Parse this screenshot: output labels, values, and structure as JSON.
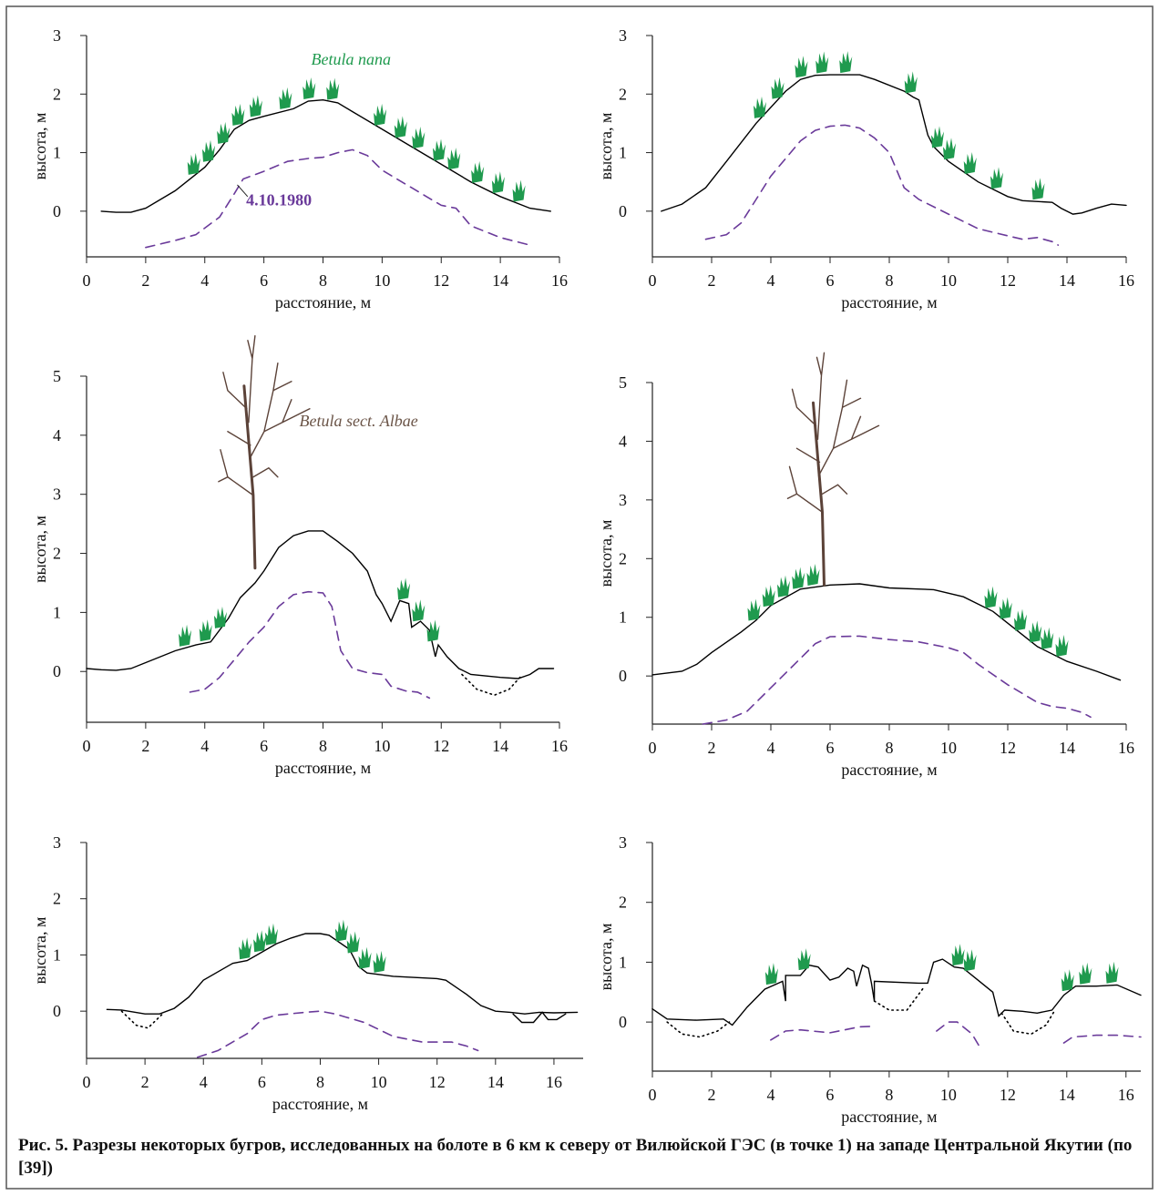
{
  "caption": "Рис. 5. Разрезы некоторых бугров, исследованных на болоте в 6 км к северу от Вилюйской ГЭС (в точке 1) на западе Центральной Якутии (по [39])",
  "chart_data": [
    {
      "type": "line",
      "xlabel": "расстояние, м",
      "ylabel": "высота, м",
      "xlim": [
        0,
        16
      ],
      "ylim": [
        -0.78,
        3
      ],
      "xticks": [
        0,
        2,
        4,
        6,
        8,
        10,
        12,
        14,
        16
      ],
      "yticks": [
        0,
        1,
        2,
        3
      ],
      "annotations": [
        {
          "text": "Betula nana",
          "color": "#1f9a4e",
          "style": "italic"
        },
        {
          "text": "4.10.1980",
          "color": "#6a3a9a",
          "style": "bold"
        }
      ],
      "series": [
        {
          "color": "#000000",
          "style": "solid",
          "x": [
            0.5,
            1,
            1.5,
            2,
            3,
            4,
            4.5,
            5,
            5.5,
            6,
            7,
            7.5,
            8,
            8.5,
            9,
            10,
            11,
            12,
            13,
            14,
            15,
            15.7
          ],
          "values": [
            0,
            -0.02,
            -0.02,
            0.05,
            0.35,
            0.75,
            1.05,
            1.4,
            1.55,
            1.62,
            1.75,
            1.88,
            1.9,
            1.85,
            1.7,
            1.4,
            1.1,
            0.8,
            0.5,
            0.25,
            0.05,
            0
          ]
        },
        {
          "color": "#6a3a9a",
          "style": "dashed",
          "x": [
            2,
            3,
            3.7,
            4.5,
            5,
            5.3,
            6,
            6.8,
            7.5,
            8,
            8.5,
            9,
            9.5,
            10,
            11,
            11.5,
            12,
            12.5,
            13,
            14,
            15
          ],
          "values": [
            -0.62,
            -0.5,
            -0.4,
            -0.1,
            0.3,
            0.55,
            0.68,
            0.85,
            0.9,
            0.92,
            1.0,
            1.05,
            0.95,
            0.7,
            0.4,
            0.25,
            0.1,
            0.05,
            -0.25,
            -0.45,
            -0.58
          ]
        }
      ]
    },
    {
      "type": "line",
      "xlabel": "расстояние, м",
      "ylabel": "высота, м",
      "xlim": [
        0,
        16
      ],
      "ylim": [
        -0.78,
        3
      ],
      "xticks": [
        0,
        2,
        4,
        6,
        8,
        10,
        12,
        14,
        16
      ],
      "yticks": [
        0,
        1,
        2,
        3
      ],
      "series": [
        {
          "color": "#000000",
          "style": "solid",
          "x": [
            0.3,
            1,
            1.8,
            2.5,
            3.5,
            4.5,
            5,
            5.5,
            6,
            7,
            7.5,
            8.5,
            8.8,
            9,
            9.3,
            9.5,
            10,
            11,
            12,
            12.5,
            13.5,
            13.8,
            14.2,
            14.5,
            15,
            15.5,
            16
          ],
          "values": [
            0,
            0.12,
            0.4,
            0.85,
            1.5,
            2.05,
            2.25,
            2.32,
            2.33,
            2.33,
            2.25,
            2.05,
            1.95,
            1.9,
            1.3,
            1.1,
            0.85,
            0.5,
            0.25,
            0.18,
            0.15,
            0.05,
            -0.05,
            -0.03,
            0.05,
            0.12,
            0.1
          ]
        },
        {
          "color": "#6a3a9a",
          "style": "dashed",
          "x": [
            1.8,
            2.5,
            3,
            3.5,
            4,
            4.5,
            5,
            5.5,
            6,
            6.5,
            7,
            7.5,
            8,
            8.5,
            9,
            10,
            11,
            12,
            12.5,
            13,
            13.5,
            13.7
          ],
          "values": [
            -0.48,
            -0.4,
            -0.2,
            0.2,
            0.6,
            0.9,
            1.2,
            1.38,
            1.45,
            1.47,
            1.42,
            1.25,
            1.0,
            0.4,
            0.2,
            -0.05,
            -0.3,
            -0.42,
            -0.48,
            -0.45,
            -0.52,
            -0.58
          ]
        }
      ]
    },
    {
      "type": "line",
      "xlabel": "расстояние, м",
      "ylabel": "высота, м",
      "xlim": [
        0,
        16
      ],
      "ylim": [
        -0.86,
        5
      ],
      "xticks": [
        0,
        2,
        4,
        6,
        8,
        10,
        12,
        14,
        16
      ],
      "yticks": [
        0,
        1,
        2,
        3,
        4,
        5
      ],
      "annotations": [
        {
          "text": "Betula sect. Albae",
          "color": "#6b5548",
          "style": "italic"
        }
      ],
      "series": [
        {
          "color": "#000000",
          "style": "solid",
          "x": [
            0,
            0.5,
            1,
            1.5,
            2,
            3,
            3.7,
            4.2,
            4.8,
            5.2,
            5.7,
            6,
            6.5,
            7,
            7.5,
            8,
            8.5,
            9,
            9.5,
            9.8,
            10,
            10.3,
            10.6,
            10.9,
            11,
            11.3,
            11.6,
            11.8,
            11.9,
            12.2,
            12.6,
            13,
            14,
            14.6,
            15,
            15.3,
            15.8
          ],
          "values": [
            0.05,
            0.03,
            0.02,
            0.05,
            0.15,
            0.35,
            0.45,
            0.5,
            0.9,
            1.25,
            1.5,
            1.7,
            2.1,
            2.3,
            2.38,
            2.38,
            2.2,
            2.0,
            1.7,
            1.3,
            1.15,
            0.85,
            1.2,
            1.15,
            0.75,
            0.85,
            0.7,
            0.25,
            0.45,
            0.25,
            0.05,
            -0.05,
            -0.1,
            -0.12,
            -0.05,
            0.05,
            0.05
          ]
        },
        {
          "color": "#6a3a9a",
          "style": "dashed",
          "x": [
            3.5,
            4,
            4.5,
            5,
            5.5,
            6,
            6.5,
            7,
            7.5,
            8,
            8.3,
            8.6,
            9,
            9.5,
            10,
            10.3,
            10.8,
            11.2,
            11.6
          ],
          "values": [
            -0.35,
            -0.3,
            -0.1,
            0.2,
            0.5,
            0.75,
            1.1,
            1.3,
            1.35,
            1.33,
            1.1,
            0.35,
            0.05,
            -0.02,
            -0.05,
            -0.25,
            -0.33,
            -0.35,
            -0.45
          ]
        },
        {
          "color": "#000000",
          "style": "dotted",
          "x": [
            12.7,
            13.2,
            13.8,
            14.3,
            14.7
          ],
          "values": [
            -0.05,
            -0.3,
            -0.4,
            -0.3,
            -0.08
          ]
        }
      ]
    },
    {
      "type": "line",
      "xlabel": "расстояние, м",
      "ylabel": "высота, м",
      "xlim": [
        0,
        16
      ],
      "ylim": [
        -0.82,
        5
      ],
      "xticks": [
        0,
        2,
        4,
        6,
        8,
        10,
        12,
        14,
        16
      ],
      "yticks": [
        0,
        1,
        2,
        3,
        4,
        5
      ],
      "series": [
        {
          "color": "#000000",
          "style": "solid",
          "x": [
            0,
            1,
            1.5,
            2,
            3,
            3.5,
            4,
            5,
            6,
            7,
            8,
            9.5,
            10.5,
            11.5,
            12,
            12.5,
            13,
            14,
            15,
            15.8
          ],
          "values": [
            0.02,
            0.08,
            0.2,
            0.4,
            0.75,
            0.95,
            1.2,
            1.48,
            1.55,
            1.57,
            1.5,
            1.47,
            1.35,
            1.1,
            0.9,
            0.7,
            0.5,
            0.25,
            0.08,
            -0.07
          ]
        },
        {
          "color": "#6a3a9a",
          "style": "dashed",
          "x": [
            1.7,
            2.5,
            3.2,
            4,
            4.8,
            5.5,
            6,
            7,
            8,
            9,
            10,
            10.5,
            11,
            12,
            12.5,
            13,
            13.5,
            14,
            14.5,
            14.8
          ],
          "values": [
            -0.82,
            -0.75,
            -0.6,
            -0.2,
            0.2,
            0.55,
            0.67,
            0.68,
            0.62,
            0.58,
            0.48,
            0.4,
            0.2,
            -0.15,
            -0.3,
            -0.45,
            -0.52,
            -0.55,
            -0.62,
            -0.7
          ]
        }
      ]
    },
    {
      "type": "line",
      "xlabel": "расстояние, м",
      "ylabel": "высота, м",
      "xlim": [
        0,
        17
      ],
      "ylim": [
        -0.84,
        3
      ],
      "xticks": [
        0,
        2,
        4,
        6,
        8,
        10,
        12,
        14,
        16
      ],
      "yticks": [
        0,
        1,
        2,
        3
      ],
      "series": [
        {
          "color": "#000000",
          "style": "solid",
          "x": [
            0.7,
            1.2,
            2,
            2.5,
            3,
            3.5,
            4,
            5,
            5.5,
            6,
            6.5,
            7,
            7.5,
            8,
            8.3,
            9,
            9.3,
            9.6,
            10.5,
            12,
            12.3,
            13,
            13.5,
            14,
            14.5,
            15,
            15.5,
            16,
            16.8
          ],
          "values": [
            0.03,
            0.02,
            -0.05,
            -0.05,
            0.05,
            0.25,
            0.55,
            0.85,
            0.9,
            1.05,
            1.2,
            1.3,
            1.38,
            1.38,
            1.35,
            1.1,
            0.8,
            0.68,
            0.62,
            0.58,
            0.55,
            0.3,
            0.1,
            0,
            -0.02,
            -0.05,
            -0.02,
            -0.03,
            -0.02
          ]
        },
        {
          "color": "#000000",
          "style": "solid",
          "x": [
            14.6,
            14.9,
            15.3,
            15.6,
            15.8,
            16.1,
            16.4
          ],
          "values": [
            -0.05,
            -0.2,
            -0.2,
            -0.02,
            -0.15,
            -0.15,
            -0.05
          ]
        },
        {
          "color": "#000000",
          "style": "dotted",
          "x": [
            1.2,
            1.7,
            2.1,
            2.6
          ],
          "values": [
            0,
            -0.25,
            -0.3,
            -0.05
          ]
        },
        {
          "color": "#6a3a9a",
          "style": "dashed",
          "x": [
            3.8,
            4.5,
            5.5,
            6,
            6.5,
            7.5,
            8,
            8.5,
            9.5,
            10.5,
            11.5,
            12.5,
            13,
            13.4
          ],
          "values": [
            -0.82,
            -0.7,
            -0.4,
            -0.15,
            -0.07,
            -0.02,
            0,
            -0.05,
            -0.2,
            -0.45,
            -0.55,
            -0.55,
            -0.62,
            -0.7
          ]
        }
      ]
    },
    {
      "type": "line",
      "xlabel": "расстояние, м",
      "ylabel": "высота, м",
      "xlim": [
        0,
        16.5
      ],
      "ylim": [
        -0.82,
        3
      ],
      "xticks": [
        0,
        2,
        4,
        6,
        8,
        10,
        12,
        14,
        16
      ],
      "yticks": [
        0,
        1,
        2,
        3
      ],
      "series": [
        {
          "color": "#000000",
          "style": "solid",
          "x": [
            0,
            0.5,
            1.5,
            2.4,
            2.7,
            3.2,
            3.8,
            4.4,
            4.5,
            4.5,
            5,
            5.3,
            5.6,
            6,
            6.3,
            6.6,
            6.8,
            6.9,
            7.1,
            7.3,
            7.4,
            7.5,
            7.5,
            9,
            9.3,
            9.5,
            9.8,
            10.2,
            10.5,
            11,
            11.5,
            11.7,
            11.9,
            12.5,
            13,
            13.5,
            13.9,
            14.3,
            15,
            15.7,
            16.5
          ],
          "values": [
            0.22,
            0.05,
            0.03,
            0.05,
            -0.05,
            0.25,
            0.55,
            0.68,
            0.35,
            0.78,
            0.78,
            0.95,
            0.92,
            0.7,
            0.75,
            0.9,
            0.85,
            0.6,
            0.95,
            0.9,
            0.65,
            0.35,
            0.68,
            0.65,
            0.65,
            1.0,
            1.05,
            0.92,
            0.9,
            0.7,
            0.5,
            0.1,
            0.2,
            0.18,
            0.15,
            0.2,
            0.45,
            0.6,
            0.6,
            0.62,
            0.45
          ]
        },
        {
          "color": "#000000",
          "style": "dotted",
          "x": [
            0.5,
            1,
            1.6,
            2.2,
            2.6,
            null,
            7.5,
            8,
            8.6,
            9.2,
            null,
            11.8,
            12.2,
            12.8,
            13.3,
            13.6
          ],
          "values": [
            0,
            -0.2,
            -0.25,
            -0.15,
            0,
            null,
            0.35,
            0.2,
            0.2,
            0.6,
            null,
            0.15,
            -0.15,
            -0.2,
            -0.05,
            0.2
          ]
        },
        {
          "color": "#6a3a9a",
          "style": "dashed",
          "x": [
            4,
            4.5,
            5,
            6,
            7,
            7.5,
            null,
            9.6,
            10,
            10.3,
            10.8,
            11.1,
            null,
            13.9,
            14.2,
            15,
            15.7,
            16.5
          ],
          "values": [
            -0.3,
            -0.15,
            -0.13,
            -0.18,
            -0.08,
            -0.07,
            null,
            -0.15,
            0,
            0,
            -0.2,
            -0.45,
            null,
            -0.35,
            -0.25,
            -0.22,
            -0.22,
            -0.25
          ]
        }
      ]
    }
  ]
}
